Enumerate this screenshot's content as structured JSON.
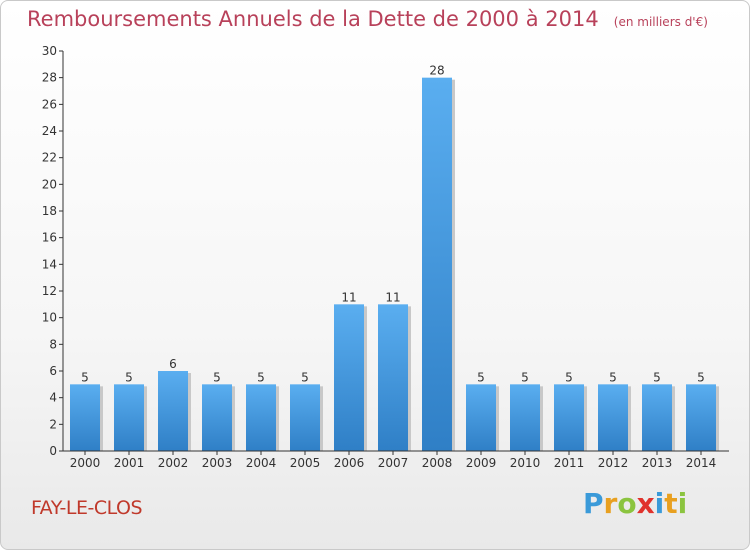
{
  "title": "Remboursements Annuels de la Dette de 2000 à 2014",
  "unit": "(en milliers d'€)",
  "commune": "FAY-LE-CLOS",
  "brand": {
    "letters": [
      "P",
      "r",
      "o",
      "x",
      "i",
      "t",
      "i"
    ],
    "colors": [
      "#3a9ad9",
      "#e8a020",
      "#8bc43f",
      "#e0322c",
      "#3a9ad9",
      "#e8a020",
      "#8bc43f"
    ]
  },
  "colors": {
    "bar": "#3d8fd6",
    "bar_light": "#5aaef0",
    "title": "#b8415a",
    "commune": "#c0392b"
  },
  "chart_data": {
    "type": "bar",
    "title": "Remboursements Annuels de la Dette de 2000 à 2014",
    "subtitle": "(en milliers d'€)",
    "categories": [
      "2000",
      "2001",
      "2002",
      "2003",
      "2004",
      "2005",
      "2006",
      "2007",
      "2008",
      "2009",
      "2010",
      "2011",
      "2012",
      "2013",
      "2014"
    ],
    "values": [
      5,
      5,
      6,
      5,
      5,
      5,
      11,
      11,
      28,
      5,
      5,
      5,
      5,
      5,
      5
    ],
    "value_labels": [
      "5",
      "5",
      "6",
      "5",
      "5",
      "5",
      "11",
      "11",
      "28",
      "5",
      "5",
      "5",
      "5",
      "5",
      "5"
    ],
    "yticks": [
      "0",
      "2",
      "4",
      "6",
      "8",
      "10",
      "12",
      "14",
      "16",
      "18",
      "20",
      "22",
      "24",
      "26",
      "28",
      "30"
    ],
    "ylim": [
      0,
      30
    ],
    "xlabel": "",
    "ylabel": "",
    "grid": false
  }
}
